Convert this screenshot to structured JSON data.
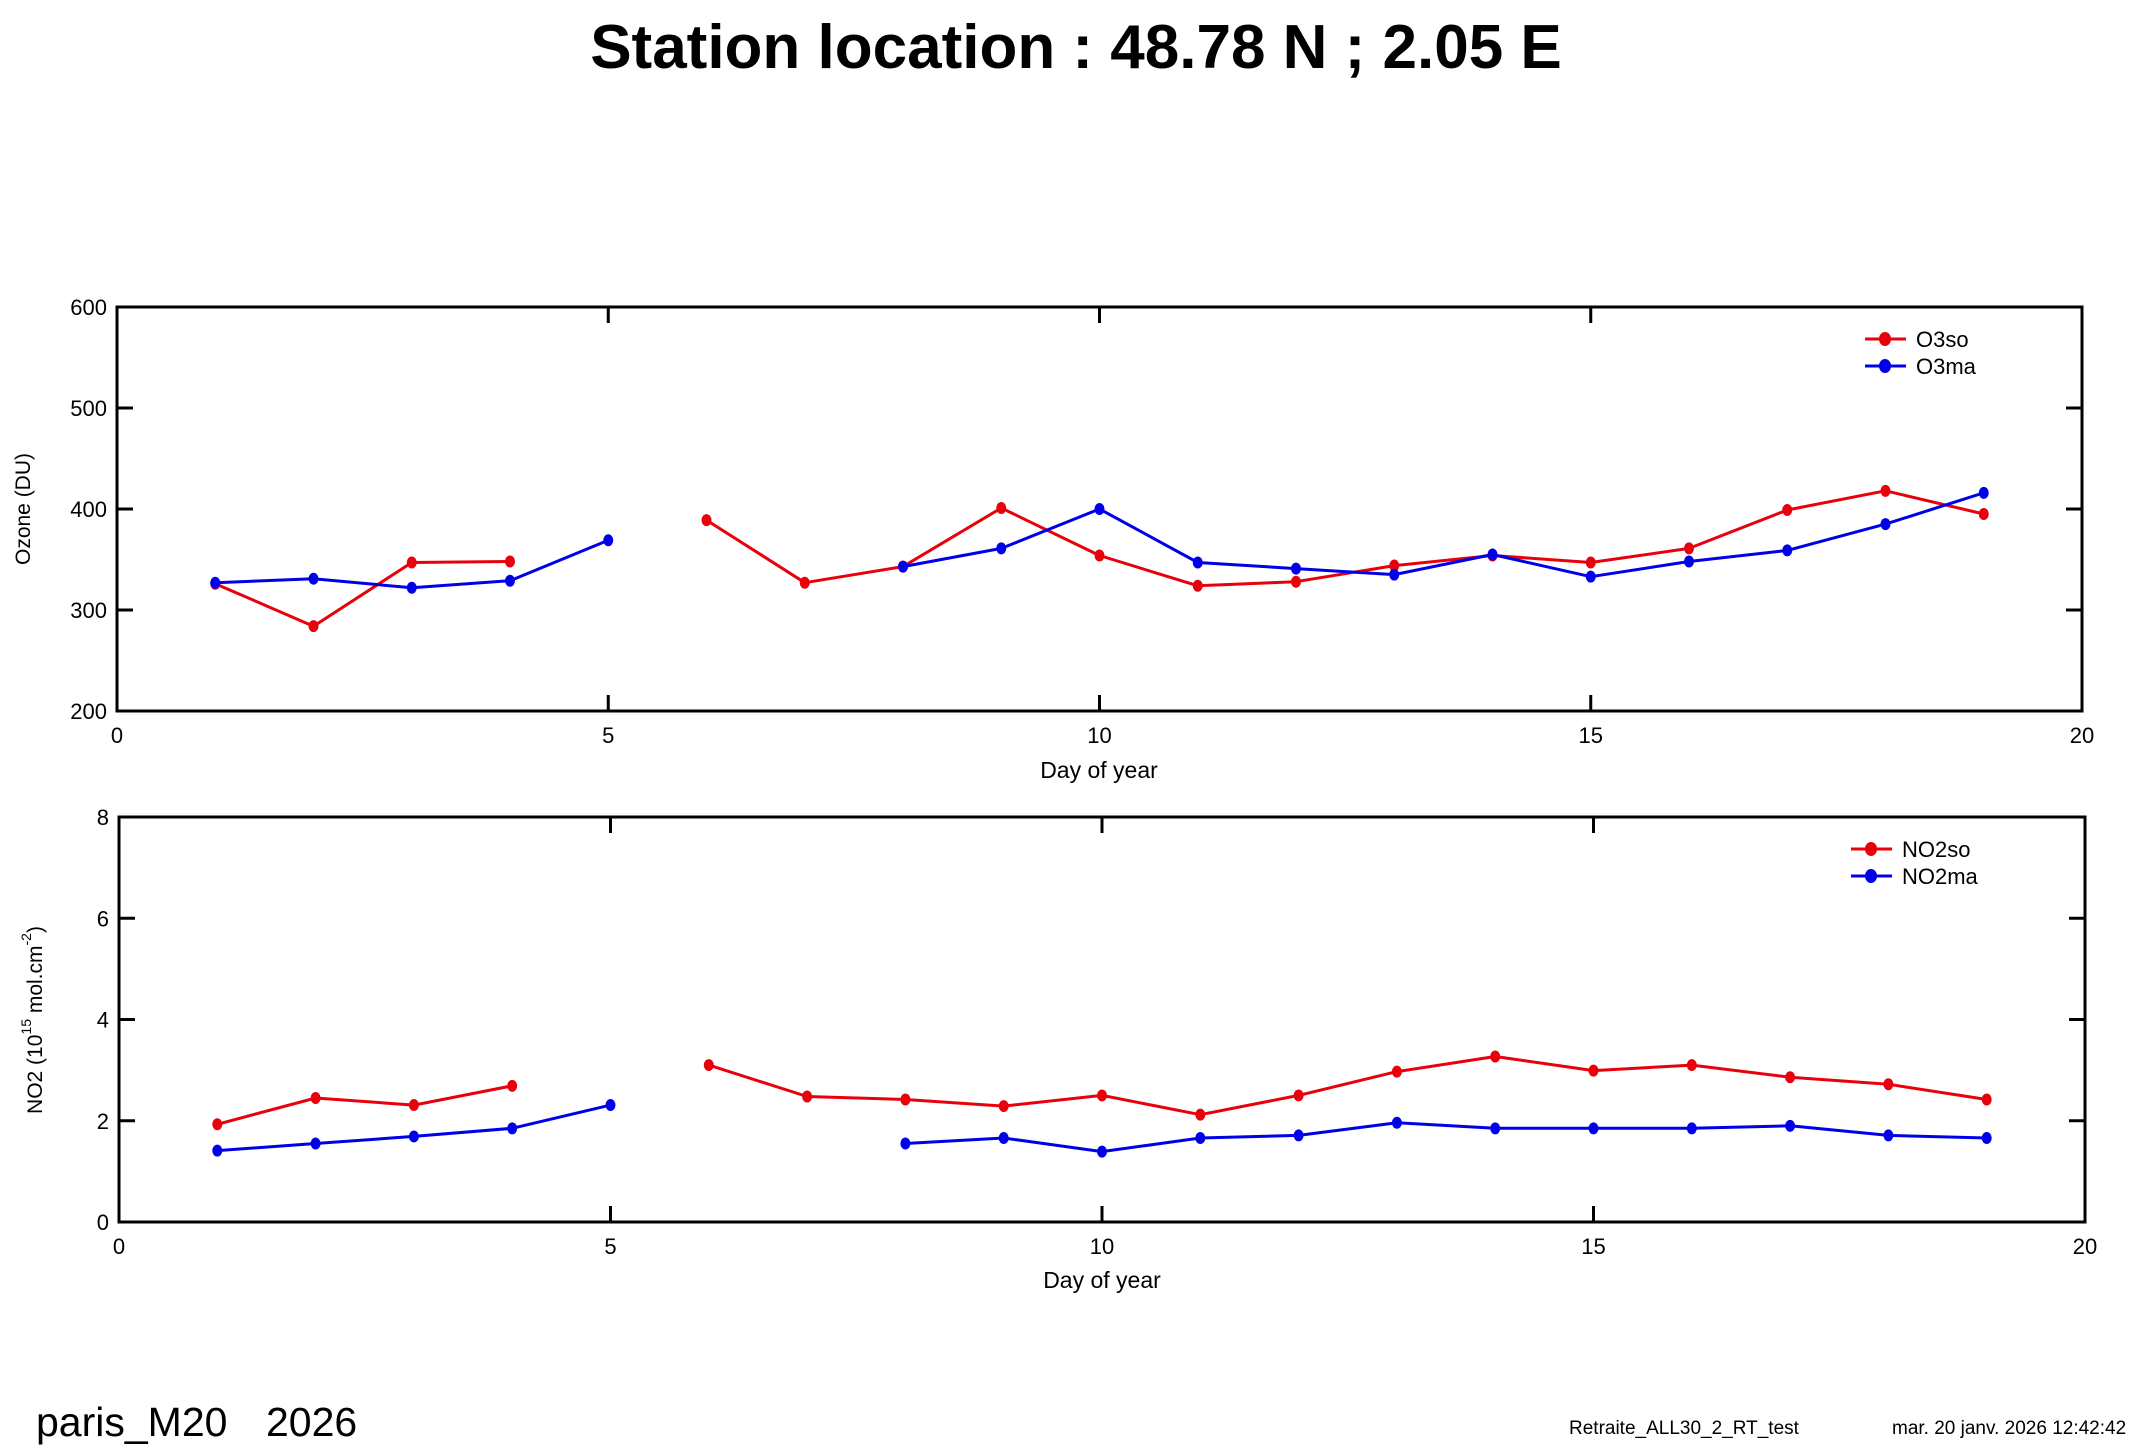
{
  "title": "Station location : 48.78 N ; 2.05 E",
  "footer": {
    "station": "paris_M20",
    "year": "2026",
    "run_name": "Retraite_ALL30_2_RT_test",
    "timestamp": "mar. 20 janv. 2026 12:42:42"
  },
  "chart_data": [
    {
      "type": "line",
      "xlabel": "Day of year",
      "ylabel": "Ozone (DU)",
      "xlim": [
        0,
        20
      ],
      "ylim": [
        200,
        600
      ],
      "xticks": [
        "0",
        "5",
        "10",
        "15",
        "20"
      ],
      "yticks": [
        "200",
        "300",
        "400",
        "500",
        "600"
      ],
      "legend_position": "top-right",
      "grid": false,
      "x": [
        1,
        2,
        3,
        4,
        5,
        6,
        7,
        8,
        9,
        10,
        11,
        12,
        13,
        14,
        15,
        16,
        17,
        18,
        19
      ],
      "series": [
        {
          "name": "O3so",
          "color": "#e8000b",
          "values": [
            326,
            284,
            347,
            348,
            null,
            389,
            327,
            343,
            401,
            354,
            324,
            328,
            344,
            354,
            347,
            361,
            399,
            418,
            395
          ]
        },
        {
          "name": "O3ma",
          "color": "#0000e8",
          "values": [
            327,
            331,
            322,
            329,
            369,
            null,
            null,
            343,
            361,
            400,
            347,
            341,
            335,
            355,
            333,
            348,
            359,
            385,
            416
          ]
        }
      ]
    },
    {
      "type": "line",
      "xlabel": "Day of year",
      "ylabel": {
        "prefix": "NO2 (10",
        "exp1": "15",
        "mid": " mol.cm",
        "exp2": "-2",
        "suffix": ")"
      },
      "xlim": [
        0,
        20
      ],
      "ylim": [
        0,
        8
      ],
      "xticks": [
        "0",
        "5",
        "10",
        "15",
        "20"
      ],
      "yticks": [
        "0",
        "2",
        "4",
        "6",
        "8"
      ],
      "legend_position": "top-right",
      "grid": false,
      "x": [
        1,
        2,
        3,
        4,
        5,
        6,
        7,
        8,
        9,
        10,
        11,
        12,
        13,
        14,
        15,
        16,
        17,
        18,
        19
      ],
      "series": [
        {
          "name": "NO2so",
          "color": "#e8000b",
          "values": [
            1.93,
            2.45,
            2.31,
            2.69,
            null,
            3.1,
            2.48,
            2.42,
            2.29,
            2.5,
            2.12,
            2.5,
            2.97,
            3.27,
            2.99,
            3.1,
            2.86,
            2.72,
            2.42
          ]
        },
        {
          "name": "NO2ma",
          "color": "#0000e8",
          "values": [
            1.41,
            1.55,
            1.69,
            1.85,
            2.31,
            null,
            null,
            1.55,
            1.66,
            1.39,
            1.66,
            1.71,
            1.96,
            1.85,
            1.85,
            1.85,
            1.9,
            1.71,
            1.66
          ]
        }
      ]
    }
  ]
}
